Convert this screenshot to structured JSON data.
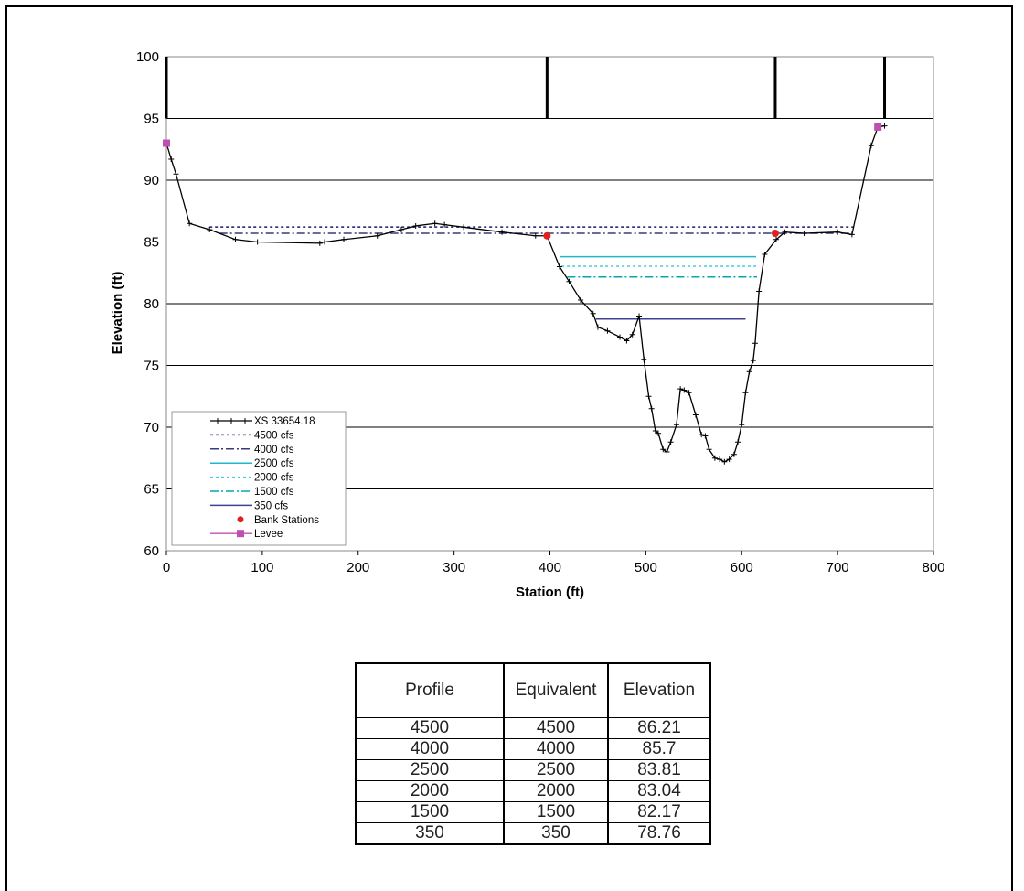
{
  "chart_data": {
    "type": "line",
    "xlabel": "Station (ft)",
    "ylabel": "Elevation (ft)",
    "xlim": [
      0,
      800
    ],
    "ylim": [
      60,
      100
    ],
    "x_ticks": [
      0,
      100,
      200,
      300,
      400,
      500,
      600,
      700,
      800
    ],
    "y_ticks": [
      60,
      65,
      70,
      75,
      80,
      85,
      90,
      95,
      100
    ],
    "grid": "horizontal",
    "legend_position": "bottom-left",
    "legend": [
      "XS 33654.18",
      "4500 cfs",
      "4000 cfs",
      "2500 cfs",
      "2000 cfs",
      "1500 cfs",
      "350 cfs",
      "Bank Stations",
      "Levee"
    ],
    "cross_section": {
      "name": "XS 33654.18",
      "color": "#000000",
      "points": [
        [
          0,
          93
        ],
        [
          5,
          91.7
        ],
        [
          10,
          90.5
        ],
        [
          24,
          86.5
        ],
        [
          45,
          86
        ],
        [
          72,
          85.2
        ],
        [
          95,
          85
        ],
        [
          160,
          84.9
        ],
        [
          165,
          85
        ],
        [
          185,
          85.2
        ],
        [
          220,
          85.5
        ],
        [
          245,
          86
        ],
        [
          260,
          86.3
        ],
        [
          280,
          86.5
        ],
        [
          290,
          86.4
        ],
        [
          310,
          86.2
        ],
        [
          350,
          85.8
        ],
        [
          385,
          85.5
        ],
        [
          397,
          85.5
        ],
        [
          410,
          83
        ],
        [
          420,
          81.8
        ],
        [
          432,
          80.3
        ],
        [
          445,
          79.2
        ],
        [
          450,
          78.1
        ],
        [
          460,
          77.8
        ],
        [
          473,
          77.3
        ],
        [
          480,
          77
        ],
        [
          486,
          77.5
        ],
        [
          493,
          79
        ],
        [
          498,
          75.5
        ],
        [
          503,
          72.5
        ],
        [
          506,
          71.5
        ],
        [
          510,
          69.7
        ],
        [
          513,
          69.5
        ],
        [
          518,
          68.2
        ],
        [
          522,
          68
        ],
        [
          526,
          68.8
        ],
        [
          532,
          70.2
        ],
        [
          536,
          73.1
        ],
        [
          540,
          73
        ],
        [
          545,
          72.8
        ],
        [
          552,
          71
        ],
        [
          558,
          69.4
        ],
        [
          562,
          69.3
        ],
        [
          566,
          68.2
        ],
        [
          572,
          67.5
        ],
        [
          577,
          67.4
        ],
        [
          582,
          67.2
        ],
        [
          587,
          67.4
        ],
        [
          592,
          67.8
        ],
        [
          596,
          68.8
        ],
        [
          600,
          70.2
        ],
        [
          604,
          72.8
        ],
        [
          608,
          74.5
        ],
        [
          612,
          75.4
        ],
        [
          614,
          76.8
        ],
        [
          618,
          81
        ],
        [
          624,
          84
        ],
        [
          636,
          85.2
        ],
        [
          645,
          85.8
        ],
        [
          665,
          85.7
        ],
        [
          700,
          85.8
        ],
        [
          715,
          85.6
        ],
        [
          735,
          92.8
        ],
        [
          742,
          94.3
        ],
        [
          749,
          94.4
        ]
      ]
    },
    "profiles": [
      {
        "name": "4500 cfs",
        "color": "#1a1a5e",
        "dash": "dot",
        "elevation": 86.21,
        "x_range": [
          45,
          720
        ]
      },
      {
        "name": "4000 cfs",
        "color": "#3a3a78",
        "dash": "dashdot",
        "elevation": 85.7,
        "x_range": [
          55,
          715
        ]
      },
      {
        "name": "2500 cfs",
        "color": "#20b8c8",
        "dash": "solid",
        "elevation": 83.81,
        "x_range": [
          410,
          615
        ]
      },
      {
        "name": "2000 cfs",
        "color": "#48c8e8",
        "dash": "dot",
        "elevation": 83.04,
        "x_range": [
          412,
          616
        ]
      },
      {
        "name": "1500 cfs",
        "color": "#00a8b0",
        "dash": "dashdot",
        "elevation": 82.17,
        "x_range": [
          418,
          616
        ]
      },
      {
        "name": "350 cfs",
        "color": "#3f3f95",
        "dash": "solid",
        "elevation": 78.76,
        "x_range": [
          448,
          604
        ]
      }
    ],
    "bank_stations": {
      "name": "Bank Stations",
      "color": "#e02020",
      "points": [
        [
          397,
          85.5
        ],
        [
          635,
          85.7
        ]
      ]
    },
    "levee": {
      "name": "Levee",
      "color": "#c050b0",
      "points": [
        [
          0,
          93
        ],
        [
          742,
          94.3
        ]
      ]
    },
    "vertical_markers": [
      {
        "x": 0,
        "y_range": [
          95,
          100
        ]
      },
      {
        "x": 397,
        "y_range": [
          95,
          100
        ]
      },
      {
        "x": 635,
        "y_range": [
          95,
          100
        ]
      },
      {
        "x": 749,
        "y_range": [
          95,
          100
        ]
      }
    ]
  },
  "table": {
    "headers": [
      "Profile",
      "Equivalent",
      "Elevation"
    ],
    "rows": [
      [
        "4500",
        "4500",
        "86.21"
      ],
      [
        "4000",
        "4000",
        "85.7"
      ],
      [
        "2500",
        "2500",
        "83.81"
      ],
      [
        "2000",
        "2000",
        "83.04"
      ],
      [
        "1500",
        "1500",
        "82.17"
      ],
      [
        "350",
        "350",
        "78.76"
      ]
    ]
  }
}
